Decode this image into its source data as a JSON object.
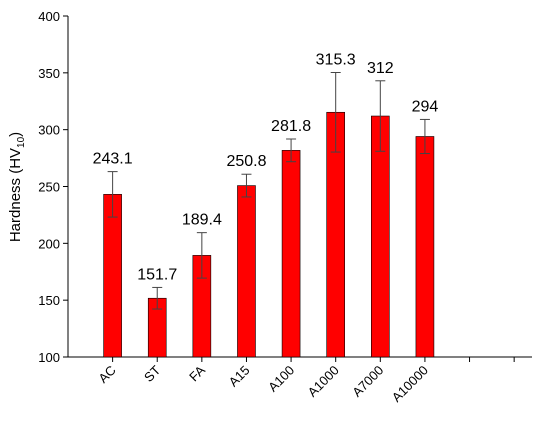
{
  "chart_data": {
    "type": "bar",
    "ylabel": {
      "main": "Hardness (HV",
      "sub": "10",
      "end": ")"
    },
    "categories": [
      "AC",
      "ST",
      "FA",
      "A15",
      "A100",
      "A1000",
      "A7000",
      "A10000",
      null,
      null
    ],
    "values": [
      243.1,
      151.7,
      189.4,
      250.8,
      281.8,
      315.3,
      312,
      294,
      null,
      null
    ],
    "errors": [
      20,
      9.5,
      20,
      10,
      10,
      35,
      31,
      15,
      null,
      null
    ],
    "color": "#ff0000",
    "ylim": [
      100,
      400
    ],
    "yticks": [
      100,
      150,
      200,
      250,
      300,
      350,
      400
    ],
    "grid": false
  }
}
